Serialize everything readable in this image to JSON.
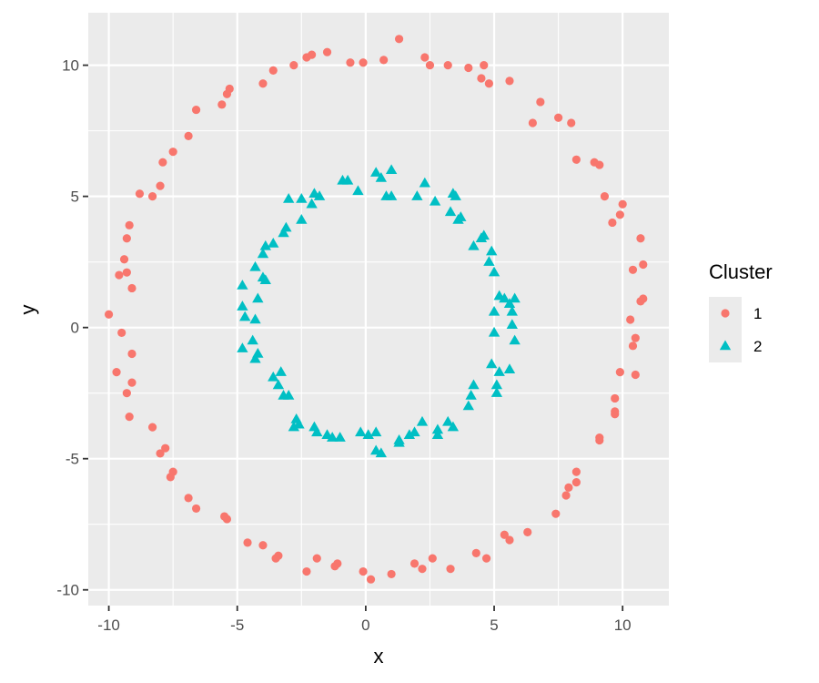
{
  "chart_data": {
    "type": "scatter",
    "xlabel": "x",
    "ylabel": "y",
    "xlim": [
      -10.8,
      11.8
    ],
    "ylim": [
      -10.6,
      12.0
    ],
    "x_ticks": [
      -10,
      -5,
      0,
      5,
      10
    ],
    "y_ticks": [
      -10,
      -5,
      0,
      5,
      10
    ],
    "grid": true,
    "legend": {
      "title": "Cluster",
      "position": "right"
    },
    "series": [
      {
        "name": "1",
        "marker": "circle",
        "color": "#F8766D",
        "points": [
          [
            1.3,
            11.0
          ],
          [
            -1.5,
            10.5
          ],
          [
            -2.3,
            10.3
          ],
          [
            -2.1,
            10.4
          ],
          [
            -0.6,
            10.1
          ],
          [
            -0.1,
            10.1
          ],
          [
            0.7,
            10.2
          ],
          [
            2.3,
            10.3
          ],
          [
            2.5,
            10.0
          ],
          [
            3.2,
            10.0
          ],
          [
            4.0,
            9.9
          ],
          [
            4.6,
            10.0
          ],
          [
            4.5,
            9.5
          ],
          [
            4.8,
            9.3
          ],
          [
            5.6,
            9.4
          ],
          [
            -2.8,
            10.0
          ],
          [
            -3.6,
            9.8
          ],
          [
            -4.0,
            9.3
          ],
          [
            -5.3,
            9.1
          ],
          [
            -5.4,
            8.9
          ],
          [
            -5.6,
            8.5
          ],
          [
            -6.6,
            8.3
          ],
          [
            -6.9,
            7.3
          ],
          [
            -7.5,
            6.7
          ],
          [
            -7.9,
            6.3
          ],
          [
            -8.0,
            5.4
          ],
          [
            -8.3,
            5.0
          ],
          [
            -8.8,
            5.1
          ],
          [
            -9.2,
            3.9
          ],
          [
            -9.3,
            3.4
          ],
          [
            -9.4,
            2.6
          ],
          [
            -9.3,
            2.1
          ],
          [
            -9.6,
            2.0
          ],
          [
            -9.1,
            1.5
          ],
          [
            -10.0,
            0.5
          ],
          [
            -9.5,
            -0.2
          ],
          [
            -9.1,
            -1.0
          ],
          [
            -9.7,
            -1.7
          ],
          [
            -9.1,
            -2.1
          ],
          [
            -9.3,
            -2.5
          ],
          [
            -9.2,
            -3.4
          ],
          [
            -8.3,
            -3.8
          ],
          [
            -7.8,
            -4.6
          ],
          [
            -8.0,
            -4.8
          ],
          [
            -7.5,
            -5.5
          ],
          [
            -7.6,
            -5.7
          ],
          [
            -6.9,
            -6.5
          ],
          [
            -6.6,
            -6.9
          ],
          [
            -5.5,
            -7.2
          ],
          [
            -5.4,
            -7.3
          ],
          [
            -4.6,
            -8.2
          ],
          [
            -4.0,
            -8.3
          ],
          [
            -3.4,
            -8.7
          ],
          [
            -3.5,
            -8.8
          ],
          [
            -1.9,
            -8.8
          ],
          [
            -2.3,
            -9.3
          ],
          [
            -1.2,
            -9.1
          ],
          [
            -1.1,
            -9.0
          ],
          [
            -0.1,
            -9.3
          ],
          [
            0.2,
            -9.6
          ],
          [
            1.0,
            -9.4
          ],
          [
            1.9,
            -9.0
          ],
          [
            2.2,
            -9.2
          ],
          [
            2.6,
            -8.8
          ],
          [
            3.3,
            -9.2
          ],
          [
            4.3,
            -8.6
          ],
          [
            4.7,
            -8.8
          ],
          [
            5.4,
            -7.9
          ],
          [
            5.6,
            -8.1
          ],
          [
            6.3,
            -7.8
          ],
          [
            7.4,
            -7.1
          ],
          [
            7.8,
            -6.4
          ],
          [
            7.9,
            -6.1
          ],
          [
            8.2,
            -5.9
          ],
          [
            8.2,
            -5.5
          ],
          [
            9.1,
            -4.3
          ],
          [
            9.1,
            -4.2
          ],
          [
            9.7,
            -3.2
          ],
          [
            9.7,
            -3.3
          ],
          [
            9.7,
            -2.7
          ],
          [
            9.9,
            -1.7
          ],
          [
            10.5,
            -1.8
          ],
          [
            10.4,
            -0.7
          ],
          [
            10.5,
            -0.4
          ],
          [
            10.3,
            0.3
          ],
          [
            10.7,
            1.0
          ],
          [
            10.8,
            1.1
          ],
          [
            10.4,
            2.2
          ],
          [
            10.8,
            2.4
          ],
          [
            10.7,
            3.4
          ],
          [
            9.9,
            4.3
          ],
          [
            10.0,
            4.7
          ],
          [
            9.6,
            4.0
          ],
          [
            9.3,
            5.0
          ],
          [
            9.1,
            6.2
          ],
          [
            8.9,
            6.3
          ],
          [
            8.2,
            6.4
          ],
          [
            8.0,
            7.8
          ],
          [
            7.5,
            8.0
          ],
          [
            6.5,
            7.8
          ],
          [
            6.8,
            8.6
          ]
        ]
      },
      {
        "name": "2",
        "marker": "triangle",
        "color": "#00BFC4",
        "points": [
          [
            0.4,
            5.9
          ],
          [
            1.0,
            6.0
          ],
          [
            0.6,
            5.7
          ],
          [
            -0.9,
            5.6
          ],
          [
            -0.7,
            5.6
          ],
          [
            -0.3,
            5.2
          ],
          [
            0.8,
            5.0
          ],
          [
            1.0,
            5.0
          ],
          [
            2.0,
            5.0
          ],
          [
            2.3,
            5.5
          ],
          [
            2.7,
            4.8
          ],
          [
            3.4,
            5.1
          ],
          [
            3.5,
            5.0
          ],
          [
            3.3,
            4.4
          ],
          [
            3.7,
            4.2
          ],
          [
            3.6,
            4.1
          ],
          [
            4.6,
            3.5
          ],
          [
            4.5,
            3.4
          ],
          [
            4.2,
            3.1
          ],
          [
            4.9,
            2.9
          ],
          [
            4.8,
            2.5
          ],
          [
            5.0,
            2.1
          ],
          [
            5.2,
            1.2
          ],
          [
            5.4,
            1.1
          ],
          [
            5.6,
            0.9
          ],
          [
            5.8,
            1.1
          ],
          [
            5.7,
            0.6
          ],
          [
            5.0,
            0.6
          ],
          [
            5.7,
            0.1
          ],
          [
            5.0,
            -0.2
          ],
          [
            5.8,
            -0.5
          ],
          [
            4.9,
            -1.4
          ],
          [
            5.6,
            -1.6
          ],
          [
            5.2,
            -1.7
          ],
          [
            5.1,
            -2.2
          ],
          [
            5.1,
            -2.5
          ],
          [
            4.2,
            -2.2
          ],
          [
            4.1,
            -2.6
          ],
          [
            4.0,
            -3.0
          ],
          [
            3.2,
            -3.6
          ],
          [
            3.4,
            -3.8
          ],
          [
            2.8,
            -3.9
          ],
          [
            2.8,
            -4.1
          ],
          [
            2.2,
            -3.6
          ],
          [
            1.9,
            -4.0
          ],
          [
            1.7,
            -4.1
          ],
          [
            1.3,
            -4.3
          ],
          [
            1.3,
            -4.4
          ],
          [
            0.4,
            -4.0
          ],
          [
            0.4,
            -4.7
          ],
          [
            0.6,
            -4.8
          ],
          [
            0.1,
            -4.1
          ],
          [
            -0.2,
            -4.0
          ],
          [
            -1.0,
            -4.2
          ],
          [
            -1.3,
            -4.2
          ],
          [
            -1.5,
            -4.1
          ],
          [
            -1.9,
            -4.0
          ],
          [
            -2.0,
            -3.8
          ],
          [
            -2.6,
            -3.7
          ],
          [
            -2.7,
            -3.5
          ],
          [
            -2.8,
            -3.8
          ],
          [
            -3.0,
            -2.6
          ],
          [
            -3.2,
            -2.6
          ],
          [
            -3.4,
            -2.2
          ],
          [
            -3.3,
            -1.7
          ],
          [
            -3.6,
            -1.9
          ],
          [
            -4.3,
            -1.2
          ],
          [
            -4.2,
            -1.0
          ],
          [
            -4.8,
            -0.8
          ],
          [
            -4.4,
            -0.5
          ],
          [
            -4.3,
            0.3
          ],
          [
            -4.7,
            0.4
          ],
          [
            -4.8,
            0.8
          ],
          [
            -4.2,
            1.1
          ],
          [
            -4.8,
            1.6
          ],
          [
            -4.0,
            1.9
          ],
          [
            -3.9,
            1.8
          ],
          [
            -4.3,
            2.3
          ],
          [
            -4.0,
            2.8
          ],
          [
            -3.9,
            3.1
          ],
          [
            -3.6,
            3.2
          ],
          [
            -3.2,
            3.6
          ],
          [
            -3.1,
            3.8
          ],
          [
            -2.5,
            4.1
          ],
          [
            -2.5,
            4.9
          ],
          [
            -3.0,
            4.9
          ],
          [
            -2.1,
            4.7
          ],
          [
            -2.0,
            5.1
          ],
          [
            -1.8,
            5.0
          ]
        ]
      }
    ]
  }
}
